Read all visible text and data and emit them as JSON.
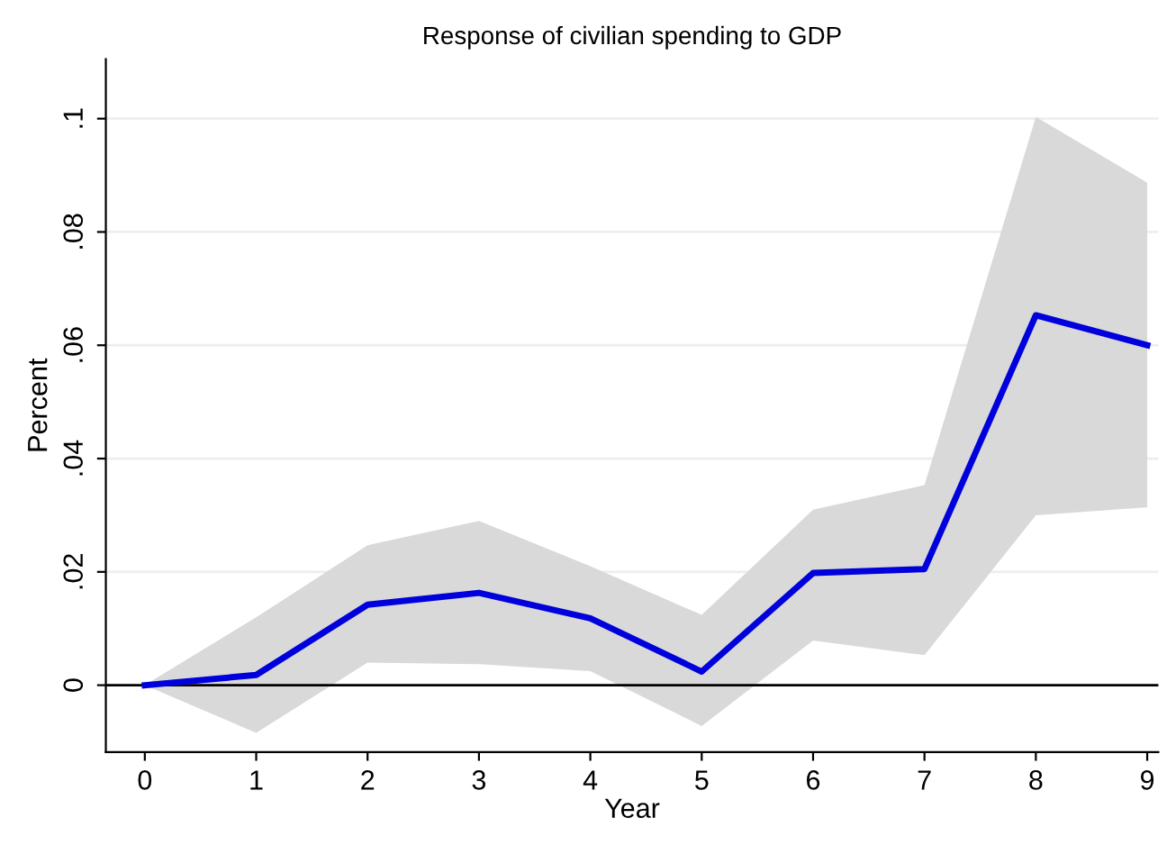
{
  "chart_data": {
    "type": "line",
    "title": "Response of civilian spending to GDP",
    "xlabel": "Year",
    "ylabel": "Percent",
    "x": [
      0,
      1,
      2,
      3,
      4,
      5,
      6,
      7,
      8,
      9
    ],
    "series": [
      {
        "color": "#0000dd",
        "values": [
          0,
          0.0018,
          0.0142,
          0.0163,
          0.0118,
          0.0024,
          0.0198,
          0.0205,
          0.0653,
          0.06
        ],
        "lower": [
          0,
          -0.0084,
          0.004,
          0.0037,
          0.0025,
          -0.0072,
          0.0079,
          0.0053,
          0.03,
          0.0314
        ],
        "upper": [
          0,
          0.012,
          0.0247,
          0.029,
          0.021,
          0.0124,
          0.031,
          0.0353,
          0.1003,
          0.0887
        ]
      }
    ],
    "xlim": [
      -0.35,
      9.1
    ],
    "ylim": [
      -0.0118,
      0.1105
    ],
    "xticks": [
      0,
      1,
      2,
      3,
      4,
      5,
      6,
      7,
      8,
      9
    ],
    "yticks": [
      0,
      {
        "value": 0.02,
        "label": ".02"
      },
      {
        "value": 0.04,
        "label": ".04"
      },
      {
        "value": 0.06,
        "label": ".06"
      },
      {
        "value": 0.08,
        "label": ".08"
      },
      {
        "value": 0.1,
        "label": ".1"
      }
    ],
    "ref_lines": [
      {
        "axis": "y",
        "value": 0,
        "color": "#000000"
      }
    ],
    "grid": "y"
  }
}
